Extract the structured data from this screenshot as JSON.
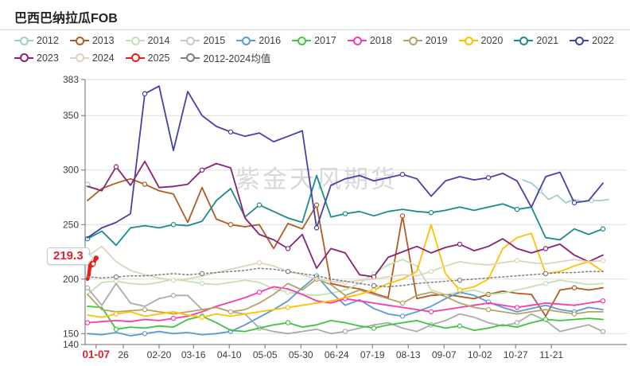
{
  "title": "巴西巴纳拉瓜FOB",
  "watermark": "紫金天风期货",
  "annotation": {
    "label": "219.3",
    "color": "#d9252b"
  },
  "legend": {
    "rows": [
      [
        {
          "label": "2012",
          "color": "#9fcfcc"
        },
        {
          "label": "2013",
          "color": "#b35a1e"
        },
        {
          "label": "2014",
          "color": "#c6e0b4"
        },
        {
          "label": "2015",
          "color": "#c8c8c8"
        },
        {
          "label": "2016",
          "color": "#5b9bd5"
        },
        {
          "label": "2017",
          "color": "#3fc43f"
        },
        {
          "label": "2018",
          "color": "#fb3aad"
        },
        {
          "label": "2019",
          "color": "#b3a369"
        },
        {
          "label": "2020",
          "color": "#ffc000"
        },
        {
          "label": "2021",
          "color": "#198c8c"
        },
        {
          "label": "2022",
          "color": "#4442a8"
        }
      ],
      [
        {
          "label": "2023",
          "color": "#8a2278"
        },
        {
          "label": "2024",
          "color": "#e0d3bd"
        },
        {
          "label": "2025",
          "color": "#e42320"
        },
        {
          "label": "2012-2024均值",
          "color": "#7f7f7f"
        }
      ]
    ]
  },
  "chart_data": {
    "type": "line",
    "title": "巴西巴纳拉瓜FOB",
    "xlabel": "",
    "ylabel": "",
    "x_unit": "day-of-year",
    "ylim": [
      140,
      383
    ],
    "grid": true,
    "legend_position": "top",
    "y_ticks": [
      383,
      350,
      300,
      250,
      200,
      150,
      140
    ],
    "x_ticks": [
      {
        "day": 7,
        "label": "01-07",
        "highlight": true
      },
      {
        "day": 26,
        "label": "26"
      },
      {
        "day": 51,
        "label": "02-20"
      },
      {
        "day": 75,
        "label": "03-16"
      },
      {
        "day": 100,
        "label": "04-10"
      },
      {
        "day": 125,
        "label": "05-05"
      },
      {
        "day": 150,
        "label": "05-30"
      },
      {
        "day": 175,
        "label": "06-24"
      },
      {
        "day": 200,
        "label": "07-19"
      },
      {
        "day": 225,
        "label": "08-13"
      },
      {
        "day": 250,
        "label": "09-07"
      },
      {
        "day": 275,
        "label": "10-02"
      },
      {
        "day": 300,
        "label": "10-27"
      },
      {
        "day": 325,
        "label": "11-21"
      }
    ],
    "days": [
      1,
      11,
      21,
      31,
      41,
      51,
      61,
      71,
      81,
      91,
      101,
      111,
      121,
      131,
      141,
      151,
      161,
      171,
      181,
      191,
      201,
      211,
      221,
      231,
      241,
      251,
      261,
      271,
      281,
      291,
      301,
      311,
      321,
      331,
      341,
      351,
      361
    ],
    "series": [
      {
        "name": "2012",
        "color": "#9fcfcc",
        "x": [
          1,
          4,
          8,
          9,
          305,
          311,
          317,
          323,
          329,
          335,
          341,
          347,
          353,
          359,
          365
        ],
        "values": [
          287,
          284,
          283,
          null,
          291,
          288,
          281,
          273,
          277,
          270,
          273,
          271,
          272,
          272,
          273
        ]
      },
      {
        "name": "2013",
        "color": "#b35a1e",
        "values": [
          272,
          283,
          288,
          292,
          287,
          281,
          278,
          252,
          284,
          255,
          250,
          248,
          250,
          228,
          251,
          246,
          268,
          196,
          193,
          191,
          187,
          183,
          258,
          182,
          185,
          186,
          184,
          182,
          186,
          189,
          187,
          186,
          166,
          190,
          192,
          190,
          192
        ]
      },
      {
        "name": "2014",
        "color": "#c6e0b4",
        "values": [
          186,
          197,
          198,
          196,
          195,
          197,
          200,
          198,
          196,
          195,
          197,
          199,
          197,
          191,
          188,
          186,
          185,
          187,
          190,
          196,
          205,
          213,
          218,
          212,
          190,
          186,
          188,
          190,
          186,
          187,
          190,
          193,
          196,
          199,
          197,
          195,
          196
        ]
      },
      {
        "name": "2015",
        "color": "#ababab",
        "values": [
          192,
          176,
          196,
          178,
          175,
          182,
          185,
          185,
          172,
          174,
          170,
          168,
          155,
          152,
          150,
          152,
          154,
          150,
          152,
          155,
          158,
          160,
          155,
          152,
          158,
          162,
          168,
          165,
          160,
          157,
          160,
          168,
          162,
          152,
          155,
          158,
          152
        ]
      },
      {
        "name": "2016",
        "color": "#5b9bd5",
        "values": [
          150,
          149,
          151,
          148,
          150,
          152,
          150,
          151,
          149,
          150,
          152,
          158,
          165,
          172,
          180,
          192,
          203,
          188,
          176,
          181,
          173,
          168,
          166,
          170,
          175,
          182,
          188,
          185,
          179,
          174,
          170,
          173,
          176,
          172,
          170,
          174,
          172
        ]
      },
      {
        "name": "2017",
        "color": "#3fc43f",
        "values": [
          175,
          174,
          154,
          156,
          155,
          157,
          156,
          163,
          166,
          160,
          153,
          152,
          155,
          158,
          160,
          156,
          158,
          162,
          160,
          157,
          155,
          158,
          160,
          162,
          158,
          155,
          157,
          153,
          155,
          158,
          156,
          160,
          163,
          162,
          163,
          164,
          163
        ]
      },
      {
        "name": "2018",
        "color": "#fb3aad",
        "values": [
          160,
          161,
          162,
          161,
          163,
          162,
          164,
          166,
          170,
          175,
          179,
          183,
          188,
          193,
          191,
          186,
          180,
          178,
          182,
          180,
          178,
          176,
          174,
          172,
          170,
          172,
          174,
          176,
          178,
          176,
          174,
          176,
          178,
          177,
          176,
          178,
          180
        ]
      },
      {
        "name": "2019",
        "color": "#b3a369",
        "values": [
          186,
          172,
          170,
          171,
          172,
          170,
          168,
          170,
          172,
          174,
          170,
          172,
          178,
          186,
          196,
          190,
          200,
          195,
          185,
          190,
          186,
          182,
          178,
          185,
          188,
          184,
          178,
          174,
          172,
          170,
          168,
          170,
          172,
          170,
          168,
          170,
          170
        ]
      },
      {
        "name": "2020",
        "color": "#ffc000",
        "values": [
          167,
          165,
          168,
          170,
          166,
          168,
          170,
          167,
          165,
          168,
          166,
          168,
          170,
          172,
          174,
          176,
          178,
          180,
          183,
          186,
          190,
          196,
          200,
          207,
          250,
          205,
          190,
          193,
          200,
          228,
          238,
          242,
          205,
          207,
          212,
          216,
          207
        ]
      },
      {
        "name": "2021",
        "color": "#198c8c",
        "values": [
          237,
          244,
          231,
          247,
          249,
          247,
          250,
          249,
          253,
          272,
          283,
          257,
          268,
          262,
          256,
          252,
          295,
          257,
          260,
          262,
          258,
          262,
          264,
          262,
          261,
          263,
          266,
          263,
          266,
          269,
          264,
          266,
          238,
          236,
          246,
          241,
          246
        ]
      },
      {
        "name": "2022",
        "color": "#4442a8",
        "values": [
          238,
          247,
          252,
          260,
          370,
          377,
          318,
          372,
          350,
          340,
          335,
          331,
          334,
          326,
          331,
          336,
          247,
          286,
          292,
          295,
          290,
          293,
          296,
          292,
          276,
          290,
          294,
          291,
          293,
          297,
          290,
          266,
          294,
          298,
          270,
          272,
          288
        ]
      },
      {
        "name": "2023",
        "color": "#8a2278",
        "values": [
          285,
          281,
          303,
          286,
          308,
          284,
          285,
          287,
          300,
          306,
          302,
          256,
          241,
          236,
          228,
          241,
          210,
          228,
          224,
          204,
          202,
          220,
          225,
          230,
          224,
          229,
          232,
          226,
          230,
          237,
          228,
          224,
          228,
          232,
          222,
          216,
          222
        ]
      },
      {
        "name": "2024",
        "color": "#e0d3bd",
        "values": [
          221,
          230,
          216,
          208,
          204,
          201,
          199,
          200,
          203,
          206,
          209,
          212,
          215,
          212,
          207,
          204,
          200,
          198,
          197,
          199,
          200,
          202,
          204,
          203,
          207,
          212,
          216,
          214,
          213,
          215,
          217,
          215,
          214,
          216,
          218,
          216,
          217
        ]
      },
      {
        "name": "2025",
        "color": "#e42320",
        "width": 4.5,
        "x": [
          1,
          2,
          3,
          4,
          5,
          7
        ],
        "values": [
          200,
          204,
          216,
          212,
          214,
          219.3
        ]
      },
      {
        "name": "2012-2024均值",
        "color": "#7f7f7f",
        "width": 1.5,
        "dash": "2,3",
        "values": [
          202,
          201,
          202,
          203,
          203,
          204,
          205,
          204,
          205,
          206,
          207,
          208,
          210,
          209,
          207,
          205,
          203,
          200,
          198,
          196,
          194,
          193,
          194,
          196,
          197,
          198,
          199,
          200,
          201,
          202,
          203,
          204,
          205,
          206,
          206,
          207,
          207
        ]
      }
    ],
    "last_point": {
      "series": "2025",
      "value": 219.3,
      "label": "219.3"
    }
  }
}
